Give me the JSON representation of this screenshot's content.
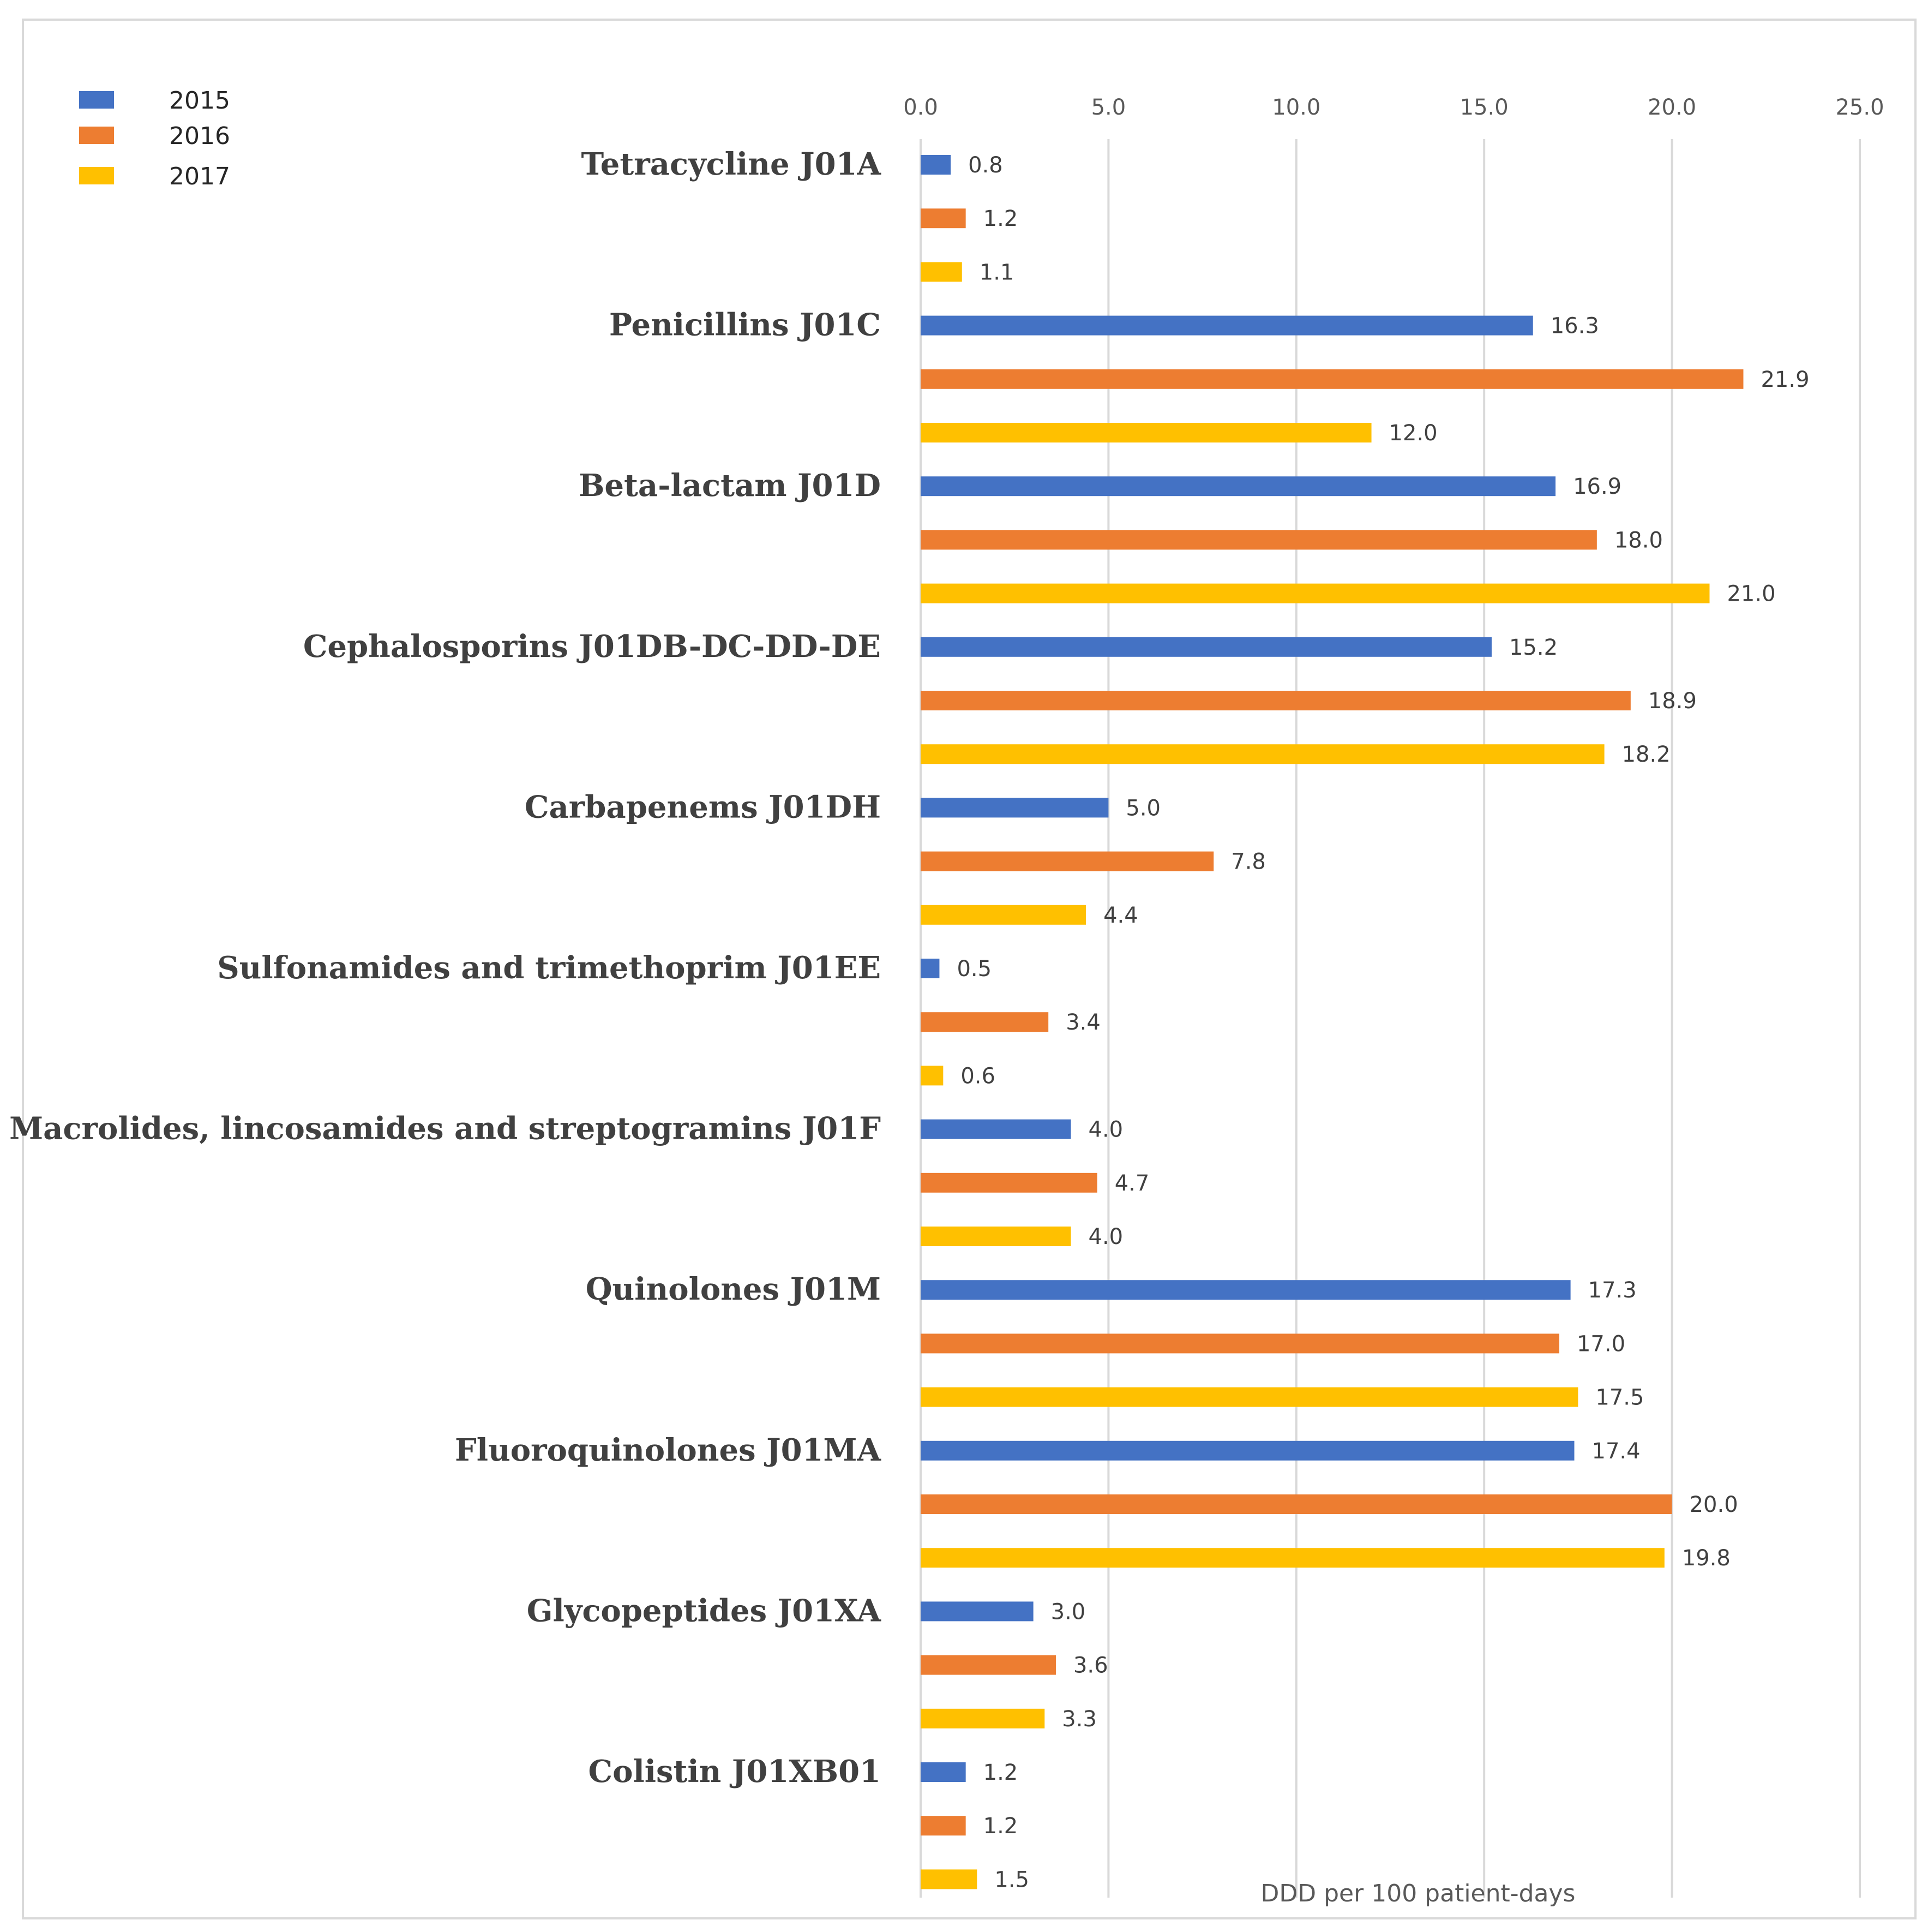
{
  "chart_data": {
    "type": "bar",
    "orientation": "horizontal",
    "title": "",
    "xlabel": "DDD per 100 patient-days",
    "ylabel": "",
    "xlim": [
      0,
      25
    ],
    "x_ticks": [
      "0.0",
      "5.0",
      "10.0",
      "15.0",
      "20.0",
      "25.0"
    ],
    "x_axis_position": "top",
    "grid": true,
    "legend_position": "top-left",
    "categories": [
      "Tetracycline J01A",
      "Penicillins J01C",
      "Beta-lactam J01D",
      "Cephalosporins J01DB-DC-DD-DE",
      "Carbapenems J01DH",
      "Sulfonamides and trimethoprim J01EE",
      "Macrolides, lincosamides and streptogramins J01F",
      "Quinolones J01M",
      "Fluoroquinolones J01MA",
      "Glycopeptides J01XA",
      "Colistin J01XB01"
    ],
    "series": [
      {
        "name": "2015",
        "color": "#4472C4",
        "values": [
          0.8,
          16.3,
          16.9,
          15.2,
          5.0,
          0.5,
          4.0,
          17.3,
          17.4,
          3.0,
          1.2
        ],
        "labels": [
          "0.8",
          "16.3",
          "16.9",
          "15.2",
          "5.0",
          "0.5",
          "4.0",
          "17.3",
          "17.4",
          "3.0",
          "1.2"
        ]
      },
      {
        "name": "2016",
        "color": "#ED7D31",
        "values": [
          1.2,
          21.9,
          18.0,
          18.9,
          7.8,
          3.4,
          4.7,
          17.0,
          20.0,
          3.6,
          1.2
        ],
        "labels": [
          "1.2",
          "21.9",
          "18.0",
          "18.9",
          "7.8",
          "3.4",
          "4.7",
          "17.0",
          "20.0",
          "3.6",
          "1.2"
        ]
      },
      {
        "name": "2017",
        "color": "#FFC000",
        "values": [
          1.1,
          12.0,
          21.0,
          18.2,
          4.4,
          0.6,
          4.0,
          17.5,
          19.8,
          3.3,
          1.5
        ],
        "labels": [
          "1.1",
          "12.0",
          "21.0",
          "18.2",
          "4.4",
          "0.6",
          "4.0",
          "17.5",
          "19.8",
          "3.3",
          "1.5"
        ]
      }
    ]
  }
}
